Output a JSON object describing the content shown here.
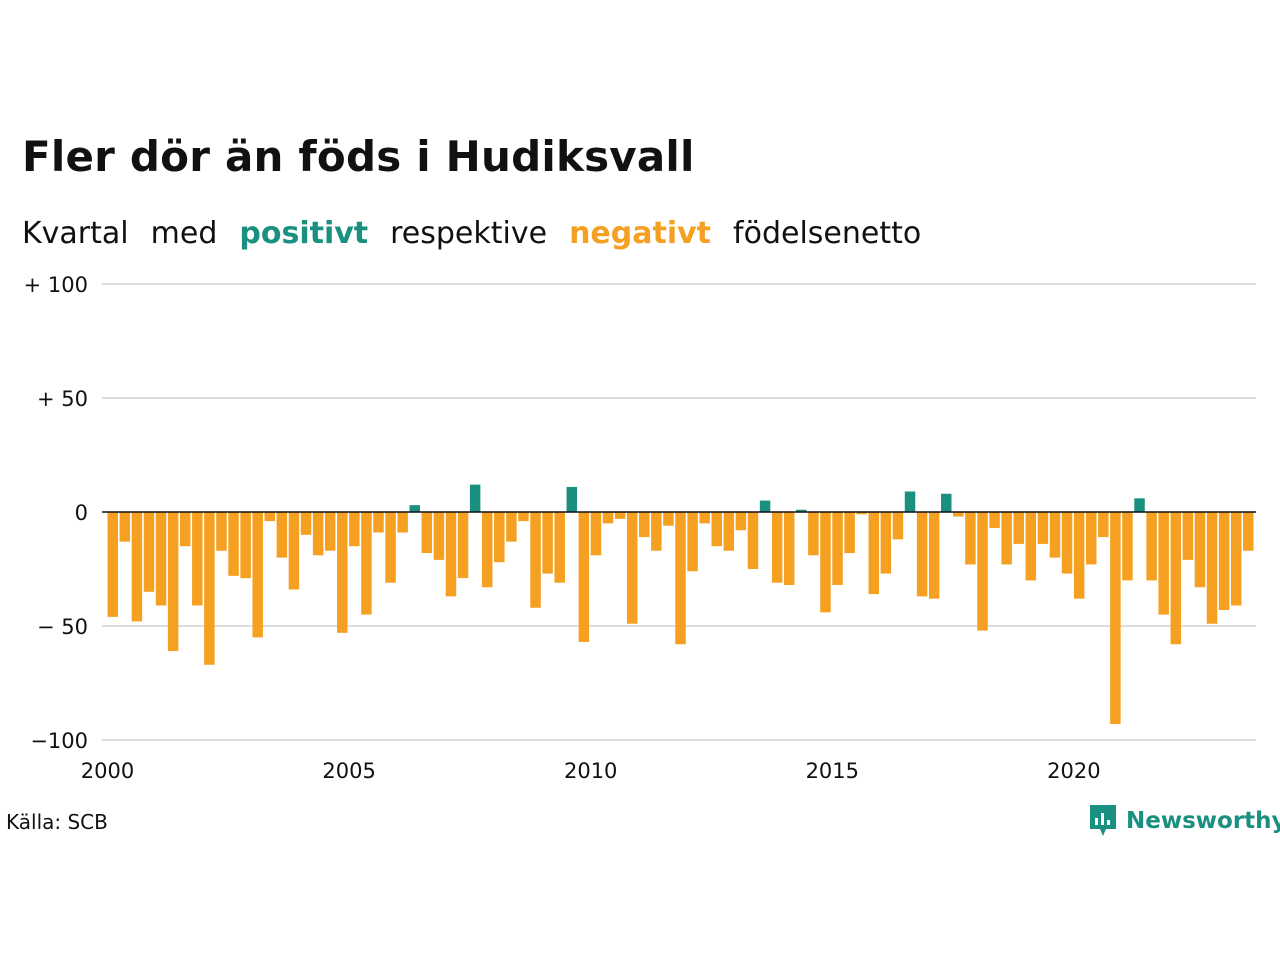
{
  "header": {
    "title": "Fler dör än föds i Hudiksvall",
    "subtitle": {
      "w1": "Kvartal",
      "w2": "med",
      "positive": "positivt",
      "w3": "respektive",
      "negative": "negativt",
      "w4": "födelsenetto"
    }
  },
  "colors": {
    "positive": "#1a9080",
    "negative": "#f5a020",
    "grid": "#dddddd",
    "zero": "#111111"
  },
  "footer": {
    "source": "Källa: SCB",
    "brand": "Newsworthy"
  },
  "chart_data": {
    "type": "bar",
    "title": "Fler dör än föds i Hudiksvall",
    "xlabel": "",
    "ylabel": "",
    "ylim": [
      -100,
      100
    ],
    "grid": true,
    "y_ticks": [
      {
        "value": 100,
        "label": "+ 100"
      },
      {
        "value": 50,
        "label": "+  50"
      },
      {
        "value": 0,
        "label": "0"
      },
      {
        "value": -50,
        "label": "− 50"
      },
      {
        "value": -100,
        "label": "−100"
      }
    ],
    "x_ticks": [
      {
        "value": 2000,
        "label": "2000"
      },
      {
        "value": 2005,
        "label": "2005"
      },
      {
        "value": 2010,
        "label": "2010"
      },
      {
        "value": 2015,
        "label": "2015"
      },
      {
        "value": 2020,
        "label": "2020"
      }
    ],
    "start_year": 2000,
    "values": [
      -46,
      -13,
      -48,
      -35,
      -41,
      -61,
      -15,
      -41,
      -67,
      -17,
      -28,
      -29,
      -55,
      -4,
      -20,
      -34,
      -10,
      -19,
      -17,
      -53,
      -15,
      -45,
      -9,
      -31,
      -9,
      3,
      -18,
      -21,
      -37,
      -29,
      12,
      -33,
      -22,
      -13,
      -4,
      -42,
      -27,
      -31,
      11,
      -57,
      -19,
      -5,
      -3,
      -49,
      -11,
      -17,
      -6,
      -58,
      -26,
      -5,
      -15,
      -17,
      -8,
      -25,
      5,
      -31,
      -32,
      1,
      -19,
      -44,
      -32,
      -18,
      -1,
      -36,
      -27,
      -12,
      9,
      -37,
      -38,
      8,
      -2,
      -23,
      -52,
      -7,
      -23,
      -14,
      -30,
      -14,
      -20,
      -27,
      -38,
      -23,
      -11,
      -93,
      -30,
      6,
      -30,
      -45,
      -58,
      -21,
      -33,
      -49,
      -43,
      -41,
      -17
    ]
  }
}
